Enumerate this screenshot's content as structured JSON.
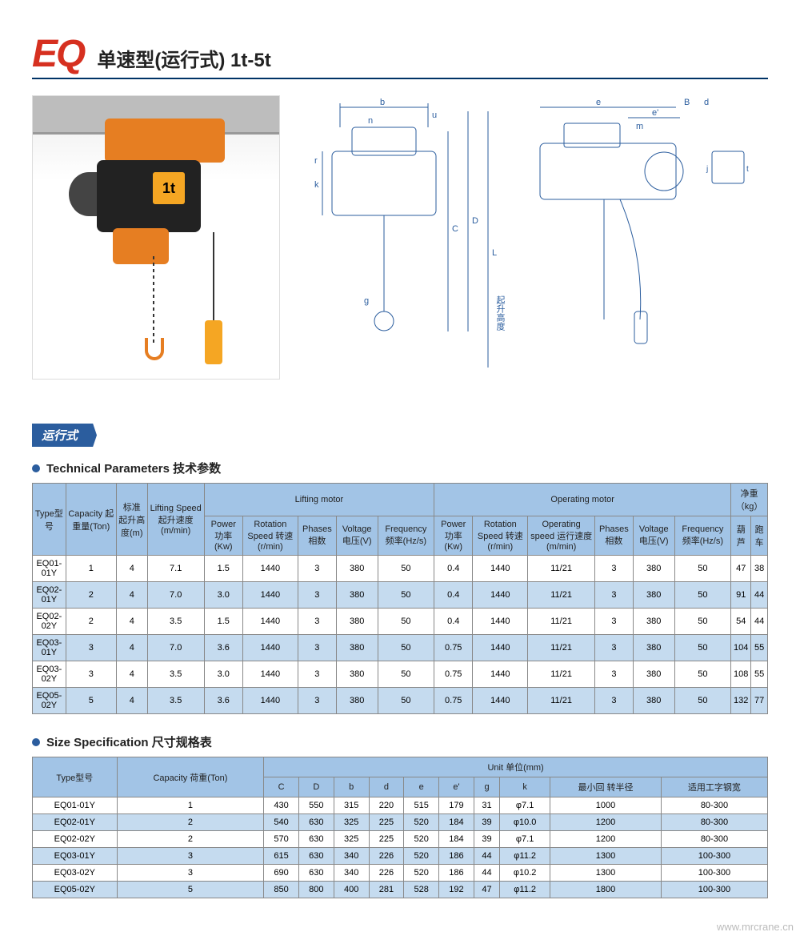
{
  "title": {
    "logo": "EQ",
    "cn": "单速型(运行式) 1t-5t",
    "product_label": "1t"
  },
  "section_label": "运行式",
  "tech": {
    "title": "Technical Parameters 技术参数",
    "headers": {
      "type": "Type型号",
      "capacity": "Capacity\n起重量(Ton)",
      "height": "标准\n起升高度(m)",
      "speed": "Lifting Speed\n起升速度\n(m/min)",
      "lift_group": "Lifting motor",
      "op_group": "Operating motor",
      "weight_group": "净重（kg）",
      "power": "Power\n功率(Kw)",
      "rot": "Rotation\nSpeed\n转速(r/min)",
      "phases": "Phases\n相数",
      "voltage": "Voltage\n电压(V)",
      "freq": "Frequency\n频率(Hz/s)",
      "op_power": "Power\n功率(Kw)",
      "op_rot": "Rotation\nSpeed\n转速(r/min)",
      "op_speed": "Operating speed\n运行速度\n(m/min)",
      "op_phases": "Phases\n相数",
      "op_voltage": "Voltage\n电压(V)",
      "op_freq": "Frequency\n频率(Hz/s)",
      "w_hoist": "葫芦",
      "w_trolley": "跑车"
    },
    "rows": [
      [
        "EQ01-01Y",
        "1",
        "4",
        "7.1",
        "1.5",
        "1440",
        "3",
        "380",
        "50",
        "0.4",
        "1440",
        "11/21",
        "3",
        "380",
        "50",
        "47",
        "38"
      ],
      [
        "EQ02-01Y",
        "2",
        "4",
        "7.0",
        "3.0",
        "1440",
        "3",
        "380",
        "50",
        "0.4",
        "1440",
        "11/21",
        "3",
        "380",
        "50",
        "91",
        "44"
      ],
      [
        "EQ02-02Y",
        "2",
        "4",
        "3.5",
        "1.5",
        "1440",
        "3",
        "380",
        "50",
        "0.4",
        "1440",
        "11/21",
        "3",
        "380",
        "50",
        "54",
        "44"
      ],
      [
        "EQ03-01Y",
        "3",
        "4",
        "7.0",
        "3.6",
        "1440",
        "3",
        "380",
        "50",
        "0.75",
        "1440",
        "11/21",
        "3",
        "380",
        "50",
        "104",
        "55"
      ],
      [
        "EQ03-02Y",
        "3",
        "4",
        "3.5",
        "3.0",
        "1440",
        "3",
        "380",
        "50",
        "0.75",
        "1440",
        "11/21",
        "3",
        "380",
        "50",
        "108",
        "55"
      ],
      [
        "EQ05-02Y",
        "5",
        "4",
        "3.5",
        "3.6",
        "1440",
        "3",
        "380",
        "50",
        "0.75",
        "1440",
        "11/21",
        "3",
        "380",
        "50",
        "132",
        "77"
      ]
    ]
  },
  "size": {
    "title": "Size Specification  尺寸规格表",
    "headers": {
      "type": "Type型号",
      "capacity": "Capacity\n荷重(Ton)",
      "unit_group": "Unit 单位(mm)",
      "cols": [
        "C",
        "D",
        "b",
        "d",
        "e",
        "e'",
        "g",
        "k",
        "最小回\n转半径",
        "适用工字钢宽"
      ]
    },
    "rows": [
      [
        "EQ01-01Y",
        "1",
        "430",
        "550",
        "315",
        "220",
        "515",
        "179",
        "31",
        "φ7.1",
        "1000",
        "80-300"
      ],
      [
        "EQ02-01Y",
        "2",
        "540",
        "630",
        "325",
        "225",
        "520",
        "184",
        "39",
        "φ10.0",
        "1200",
        "80-300"
      ],
      [
        "EQ02-02Y",
        "2",
        "570",
        "630",
        "325",
        "225",
        "520",
        "184",
        "39",
        "φ7.1",
        "1200",
        "80-300"
      ],
      [
        "EQ03-01Y",
        "3",
        "615",
        "630",
        "340",
        "226",
        "520",
        "186",
        "44",
        "φ11.2",
        "1300",
        "100-300"
      ],
      [
        "EQ03-02Y",
        "3",
        "690",
        "630",
        "340",
        "226",
        "520",
        "186",
        "44",
        "φ10.2",
        "1300",
        "100-300"
      ],
      [
        "EQ05-02Y",
        "5",
        "850",
        "800",
        "400",
        "281",
        "528",
        "192",
        "47",
        "φ11.2",
        "1800",
        "100-300"
      ]
    ]
  },
  "diagram_labels": {
    "b": "b",
    "n": "n",
    "u": "u",
    "k": "k",
    "C": "C",
    "D": "D",
    "L": "L",
    "g": "g",
    "r": "r",
    "e": "e",
    "B": "B",
    "d": "d",
    "e2": "e'",
    "m": "m",
    "j": "j",
    "t": "t",
    "lift": "起升高度"
  },
  "watermark": "www.mrcrane.cn",
  "colors": {
    "accent": "#2b5d9e",
    "header_bg": "#a2c4e6",
    "row_even": "#c5dbef",
    "logo": "#d63020",
    "orange": "#e67e22"
  }
}
